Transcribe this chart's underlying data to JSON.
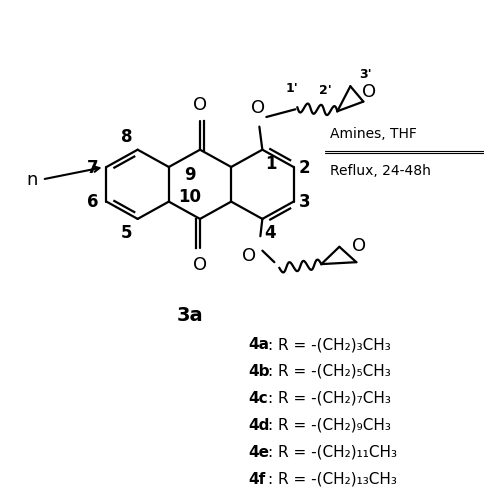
{
  "background_color": "#ffffff",
  "compound_label": "3a",
  "arrow_label_top": "Amines, THF",
  "arrow_label_bottom": "Reflux, 24-48h",
  "compound_list": [
    {
      "bold": "4a",
      "text": ": R = -(CH₂)₃CH₃"
    },
    {
      "bold": "4b",
      "text": ": R = -(CH₂)₅CH₃"
    },
    {
      "bold": "4c",
      "text": ": R = -(CH₂)₇CH₃"
    },
    {
      "bold": "4d",
      "text": ": R = -(CH₂)₉CH₃"
    },
    {
      "bold": "4e",
      "text": ": R = -(CH₂)₁₁CH₃"
    },
    {
      "bold": "4f",
      "text": ": R = -(CH₂)₁₃CH₃"
    }
  ]
}
